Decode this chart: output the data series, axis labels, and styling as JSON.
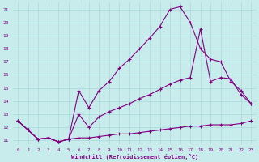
{
  "xlabel": "Windchill (Refroidissement éolien,°C)",
  "background_color": "#c8ecec",
  "line_color": "#800080",
  "grid_color": "#a8d8d8",
  "xlim": [
    -0.5,
    23.5
  ],
  "ylim": [
    10.7,
    21.5
  ],
  "xticks": [
    0,
    1,
    2,
    3,
    4,
    5,
    6,
    7,
    8,
    9,
    10,
    11,
    12,
    13,
    14,
    15,
    16,
    17,
    18,
    19,
    20,
    21,
    22,
    23
  ],
  "yticks": [
    11,
    12,
    13,
    14,
    15,
    16,
    17,
    18,
    19,
    20,
    21
  ],
  "series1_x": [
    0,
    1,
    2,
    3,
    4,
    5,
    6,
    7,
    8,
    9,
    10,
    11,
    12,
    13,
    14,
    15,
    16,
    17,
    18,
    19,
    20,
    21,
    22,
    23
  ],
  "series1_y": [
    12.5,
    11.8,
    11.1,
    11.2,
    10.9,
    11.1,
    11.2,
    11.2,
    11.3,
    11.4,
    11.5,
    11.5,
    11.6,
    11.7,
    11.8,
    11.9,
    12.0,
    12.1,
    12.1,
    12.2,
    12.2,
    12.2,
    12.3,
    12.5
  ],
  "series2_x": [
    0,
    1,
    2,
    3,
    4,
    5,
    6,
    7,
    8,
    9,
    10,
    11,
    12,
    13,
    14,
    15,
    16,
    17,
    18,
    19,
    20,
    21,
    22,
    23
  ],
  "series2_y": [
    12.5,
    11.8,
    11.1,
    11.2,
    10.9,
    11.1,
    13.0,
    12.0,
    12.8,
    13.2,
    13.5,
    13.8,
    14.2,
    14.5,
    14.9,
    15.3,
    15.6,
    15.8,
    19.5,
    15.5,
    15.8,
    15.7,
    14.5,
    13.8
  ],
  "series3_x": [
    0,
    1,
    2,
    3,
    4,
    5,
    6,
    7,
    8,
    9,
    10,
    11,
    12,
    13,
    14,
    15,
    16,
    17,
    18,
    19,
    20,
    21,
    22,
    23
  ],
  "series3_y": [
    12.5,
    11.8,
    11.1,
    11.2,
    10.9,
    11.1,
    14.8,
    13.5,
    14.8,
    15.5,
    16.5,
    17.2,
    18.0,
    18.8,
    19.7,
    21.0,
    21.2,
    20.0,
    18.0,
    17.2,
    17.0,
    15.5,
    14.8,
    13.8
  ]
}
